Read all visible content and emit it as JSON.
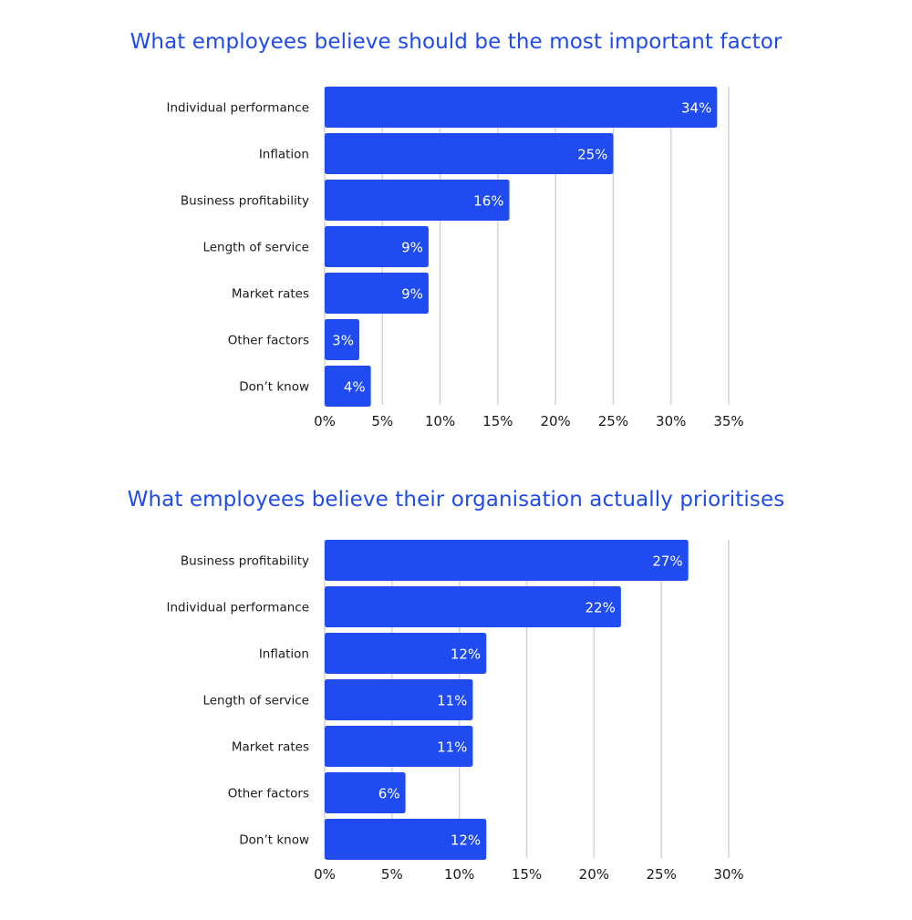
{
  "colors": {
    "bar": "#1f4bf0",
    "title": "#1f4be8",
    "grid": "#d3d3d3"
  },
  "chart_data": [
    {
      "type": "bar",
      "orientation": "horizontal",
      "title": "What employees believe should be the most important factor",
      "categories": [
        "Individual performance",
        "Inflation",
        "Business profitability",
        "Length of service",
        "Market rates",
        "Other factors",
        "Don’t know"
      ],
      "values": [
        34,
        25,
        16,
        9,
        9,
        3,
        4
      ],
      "value_labels": [
        "34%",
        "25%",
        "16%",
        "9%",
        "9%",
        "3%",
        "4%"
      ],
      "xlim": [
        0,
        35
      ],
      "xticks": [
        "0%",
        "5%",
        "10%",
        "15%",
        "20%",
        "25%",
        "30%",
        "35%"
      ],
      "grid": true
    },
    {
      "type": "bar",
      "orientation": "horizontal",
      "title": "What employees believe their organisation actually prioritises",
      "categories": [
        "Business profitability",
        "Individual performance",
        "Inflation",
        "Length of service",
        "Market rates",
        "Other factors",
        "Don’t know"
      ],
      "values": [
        27,
        22,
        12,
        11,
        11,
        6,
        12
      ],
      "value_labels": [
        "27%",
        "22%",
        "12%",
        "11%",
        "11%",
        "6%",
        "12%"
      ],
      "xlim": [
        0,
        30
      ],
      "xticks": [
        "0%",
        "5%",
        "10%",
        "15%",
        "20%",
        "25%",
        "30%"
      ],
      "grid": true
    }
  ]
}
